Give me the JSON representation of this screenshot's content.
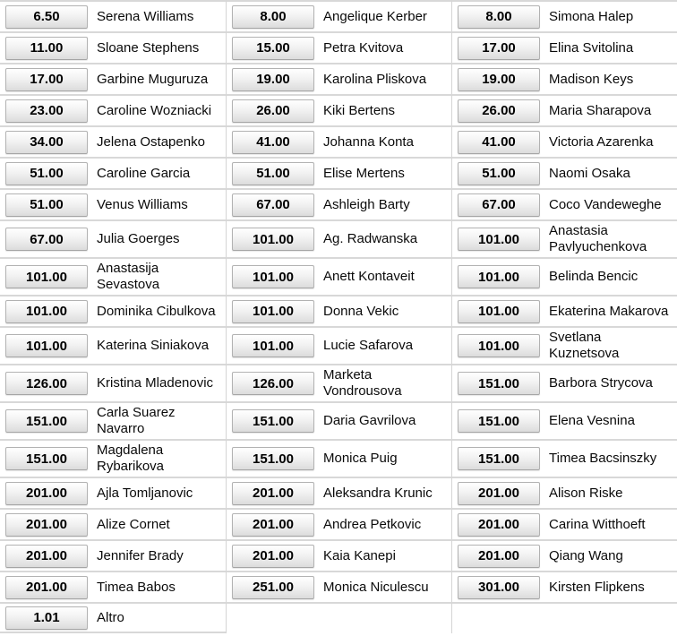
{
  "page": {
    "background_color": "#ffffff",
    "separator_color": "#d8d8d8",
    "column_separator_color": "#d4d4d4",
    "button_border_color": "#b2b2b2",
    "button_gradient_top": "#ffffff",
    "button_gradient_bottom": "#dcdcdc",
    "odds_text_color": "#000000"
  },
  "market": {
    "rows": [
      [
        {
          "odds": "6.50",
          "name": "Serena Williams"
        },
        {
          "odds": "8.00",
          "name": "Angelique Kerber"
        },
        {
          "odds": "8.00",
          "name": "Simona Halep"
        }
      ],
      [
        {
          "odds": "11.00",
          "name": "Sloane Stephens"
        },
        {
          "odds": "15.00",
          "name": "Petra Kvitova"
        },
        {
          "odds": "17.00",
          "name": "Elina Svitolina"
        }
      ],
      [
        {
          "odds": "17.00",
          "name": "Garbine Muguruza"
        },
        {
          "odds": "19.00",
          "name": "Karolina Pliskova"
        },
        {
          "odds": "19.00",
          "name": "Madison Keys"
        }
      ],
      [
        {
          "odds": "23.00",
          "name": "Caroline Wozniacki"
        },
        {
          "odds": "26.00",
          "name": "Kiki Bertens"
        },
        {
          "odds": "26.00",
          "name": "Maria Sharapova"
        }
      ],
      [
        {
          "odds": "34.00",
          "name": "Jelena Ostapenko"
        },
        {
          "odds": "41.00",
          "name": "Johanna Konta"
        },
        {
          "odds": "41.00",
          "name": "Victoria Azarenka"
        }
      ],
      [
        {
          "odds": "51.00",
          "name": "Caroline Garcia"
        },
        {
          "odds": "51.00",
          "name": "Elise Mertens"
        },
        {
          "odds": "51.00",
          "name": "Naomi Osaka"
        }
      ],
      [
        {
          "odds": "51.00",
          "name": "Venus Williams"
        },
        {
          "odds": "67.00",
          "name": "Ashleigh Barty"
        },
        {
          "odds": "67.00",
          "name": "Coco Vandeweghe"
        }
      ],
      [
        {
          "odds": "67.00",
          "name": "Julia Goerges"
        },
        {
          "odds": "101.00",
          "name": "Ag. Radwanska"
        },
        {
          "odds": "101.00",
          "name": "Anastasia Pavlyuchenkova"
        }
      ],
      [
        {
          "odds": "101.00",
          "name": "Anastasija Sevastova"
        },
        {
          "odds": "101.00",
          "name": "Anett Kontaveit"
        },
        {
          "odds": "101.00",
          "name": "Belinda Bencic"
        }
      ],
      [
        {
          "odds": "101.00",
          "name": "Dominika Cibulkova"
        },
        {
          "odds": "101.00",
          "name": "Donna Vekic"
        },
        {
          "odds": "101.00",
          "name": "Ekaterina Makarova"
        }
      ],
      [
        {
          "odds": "101.00",
          "name": "Katerina Siniakova"
        },
        {
          "odds": "101.00",
          "name": "Lucie Safarova"
        },
        {
          "odds": "101.00",
          "name": "Svetlana Kuznetsova"
        }
      ],
      [
        {
          "odds": "126.00",
          "name": "Kristina Mladenovic"
        },
        {
          "odds": "126.00",
          "name": "Marketa Vondrousova"
        },
        {
          "odds": "151.00",
          "name": "Barbora Strycova"
        }
      ],
      [
        {
          "odds": "151.00",
          "name": "Carla Suarez Navarro"
        },
        {
          "odds": "151.00",
          "name": "Daria Gavrilova"
        },
        {
          "odds": "151.00",
          "name": "Elena Vesnina"
        }
      ],
      [
        {
          "odds": "151.00",
          "name": "Magdalena Rybarikova"
        },
        {
          "odds": "151.00",
          "name": "Monica Puig"
        },
        {
          "odds": "151.00",
          "name": "Timea Bacsinszky"
        }
      ],
      [
        {
          "odds": "201.00",
          "name": "Ajla Tomljanovic"
        },
        {
          "odds": "201.00",
          "name": "Aleksandra Krunic"
        },
        {
          "odds": "201.00",
          "name": "Alison Riske"
        }
      ],
      [
        {
          "odds": "201.00",
          "name": "Alize Cornet"
        },
        {
          "odds": "201.00",
          "name": "Andrea Petkovic"
        },
        {
          "odds": "201.00",
          "name": "Carina Witthoeft"
        }
      ],
      [
        {
          "odds": "201.00",
          "name": "Jennifer Brady"
        },
        {
          "odds": "201.00",
          "name": "Kaia Kanepi"
        },
        {
          "odds": "201.00",
          "name": "Qiang Wang"
        }
      ],
      [
        {
          "odds": "201.00",
          "name": "Timea Babos"
        },
        {
          "odds": "251.00",
          "name": "Monica Niculescu"
        },
        {
          "odds": "301.00",
          "name": "Kirsten Flipkens"
        }
      ],
      [
        {
          "odds": "1.01",
          "name": "Altro"
        },
        null,
        null
      ]
    ]
  }
}
